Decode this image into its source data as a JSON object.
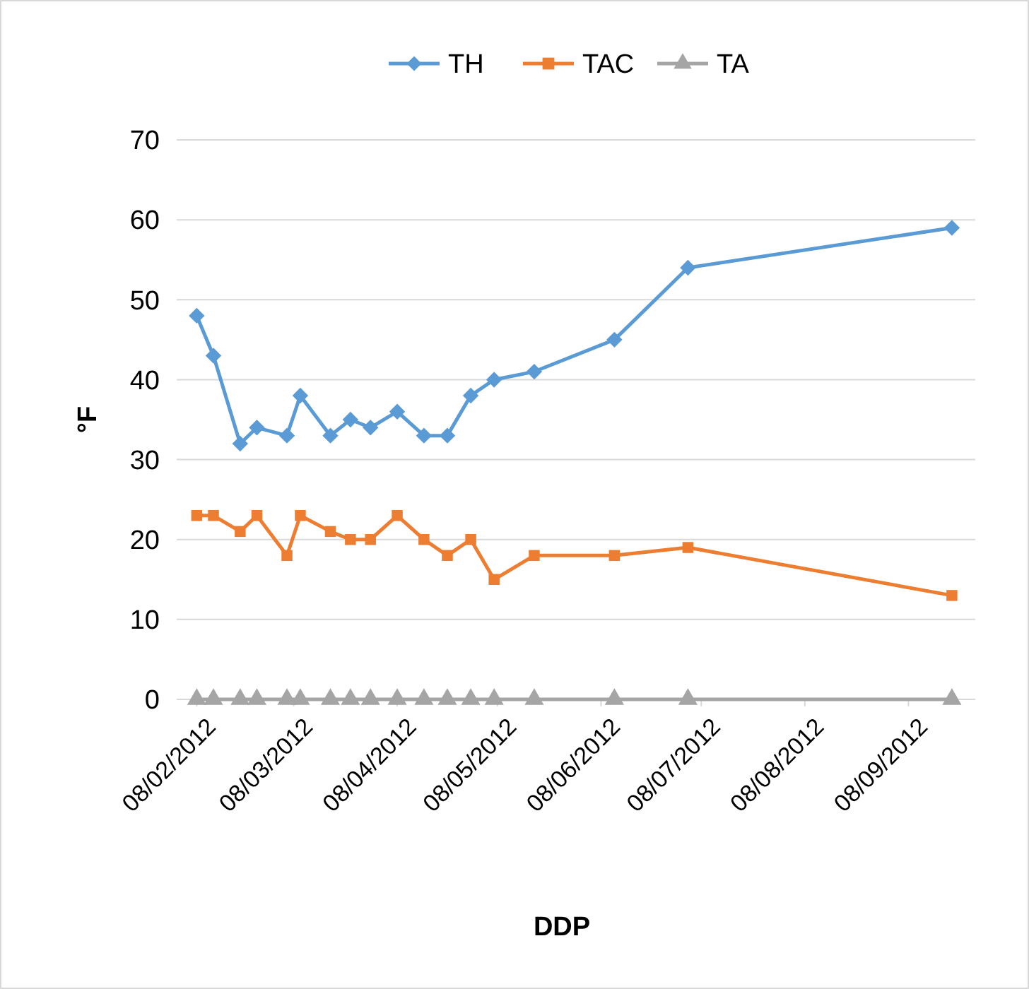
{
  "chart_data": {
    "type": "line",
    "xlabel": "DDP",
    "ylabel": "°F",
    "x": [
      "2012-02-08",
      "2012-02-13",
      "2012-02-21",
      "2012-02-26",
      "2012-03-06",
      "2012-03-10",
      "2012-03-19",
      "2012-03-25",
      "2012-03-31",
      "2012-04-08",
      "2012-04-16",
      "2012-04-23",
      "2012-04-30",
      "2012-05-07",
      "2012-05-19",
      "2012-06-12",
      "2012-07-04",
      "2012-09-21"
    ],
    "series": [
      {
        "name": "TH",
        "color": "#5b9bd5",
        "marker": "diamond",
        "values": [
          48,
          43,
          32,
          34,
          33,
          38,
          33,
          35,
          34,
          36,
          33,
          33,
          38,
          40,
          41,
          45,
          54,
          59
        ]
      },
      {
        "name": "TAC",
        "color": "#ed7d31",
        "marker": "square",
        "values": [
          23,
          23,
          21,
          23,
          18,
          23,
          21,
          20,
          20,
          23,
          20,
          18,
          20,
          15,
          18,
          18,
          19,
          13
        ]
      },
      {
        "name": "TA",
        "color": "#a5a5a5",
        "marker": "triangle",
        "values": [
          0,
          0,
          0,
          0,
          0,
          0,
          0,
          0,
          0,
          0,
          0,
          0,
          0,
          0,
          0,
          0,
          0,
          0
        ]
      }
    ],
    "xlim": [
      "2012-02-02",
      "2012-09-28"
    ],
    "xticks": [
      {
        "value": "2012-02-08",
        "label": "08/02/2012"
      },
      {
        "value": "2012-03-08",
        "label": "08/03/2012"
      },
      {
        "value": "2012-04-08",
        "label": "08/04/2012"
      },
      {
        "value": "2012-05-08",
        "label": "08/05/2012"
      },
      {
        "value": "2012-06-08",
        "label": "08/06/2012"
      },
      {
        "value": "2012-07-08",
        "label": "08/07/2012"
      },
      {
        "value": "2012-08-08",
        "label": "08/08/2012"
      },
      {
        "value": "2012-09-08",
        "label": "08/09/2012"
      }
    ],
    "ylim": [
      0,
      70
    ],
    "yticks": [
      0,
      10,
      20,
      30,
      40,
      50,
      60,
      70
    ],
    "grid": "y",
    "legend": "top",
    "line_style": "solid"
  }
}
